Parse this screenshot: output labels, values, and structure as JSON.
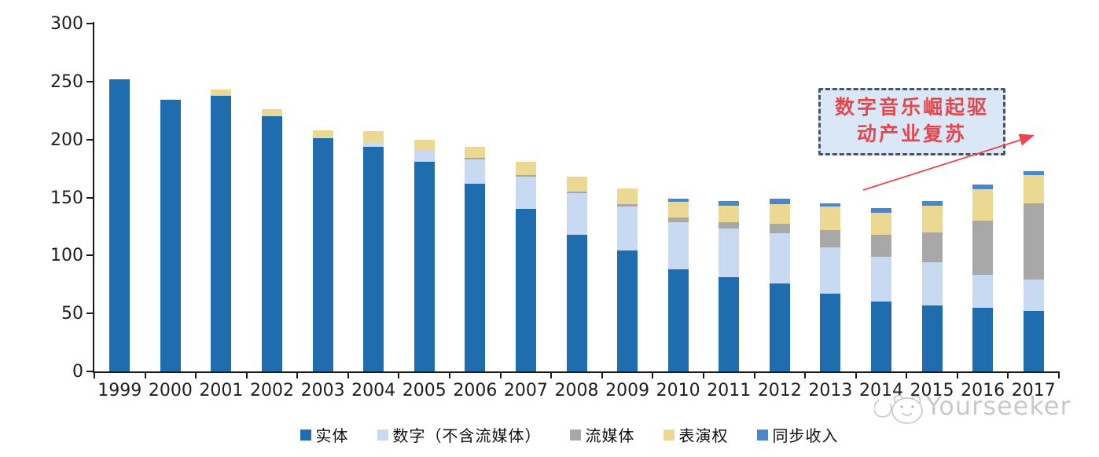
{
  "chart_data": {
    "type": "bar",
    "stacked": true,
    "title": "",
    "categories": [
      "1999",
      "2000",
      "2001",
      "2002",
      "2003",
      "2004",
      "2005",
      "2006",
      "2007",
      "2008",
      "2009",
      "2010",
      "2011",
      "2012",
      "2013",
      "2014",
      "2015",
      "2016",
      "2017"
    ],
    "series": [
      {
        "name": "实体",
        "color": "#1F6CAE",
        "values": [
          252,
          234,
          238,
          220,
          201,
          194,
          181,
          162,
          140,
          118,
          104,
          88,
          81,
          76,
          67,
          60,
          57,
          55,
          52
        ]
      },
      {
        "name": "数字（不含流媒体）",
        "color": "#C7DAF1",
        "values": [
          0,
          0,
          0,
          0,
          0,
          4,
          9,
          21,
          28,
          36,
          38,
          41,
          42,
          43,
          40,
          39,
          37,
          28,
          27
        ]
      },
      {
        "name": "流媒体",
        "color": "#A8A8A8",
        "values": [
          0,
          0,
          0,
          0,
          0,
          0,
          0,
          1,
          1,
          1,
          2,
          4,
          6,
          8,
          15,
          19,
          26,
          47,
          66
        ]
      },
      {
        "name": "表演权",
        "color": "#EBD893",
        "values": [
          0,
          0,
          5,
          6,
          7,
          9,
          10,
          10,
          12,
          13,
          14,
          13,
          14,
          17,
          20,
          19,
          23,
          27,
          24
        ]
      },
      {
        "name": "同步收入",
        "color": "#4C87C9",
        "values": [
          0,
          0,
          0,
          0,
          0,
          0,
          0,
          0,
          0,
          0,
          0,
          3,
          4,
          5,
          3,
          4,
          4,
          4,
          4
        ]
      }
    ],
    "xlabel": "",
    "ylabel": "",
    "ylim": [
      0,
      300
    ],
    "yticks": [
      0,
      50,
      100,
      150,
      200,
      250,
      300
    ],
    "grid": false,
    "legend_position": "bottom"
  },
  "annotation": {
    "line1": "数字音乐崛起驱",
    "line2": "动产业复苏",
    "text_color": "#E2484E",
    "box_fill": "#DAE7F6",
    "border_color": "#44546A",
    "arrow_color": "#EE4450"
  },
  "watermark": {
    "text": "Yourseeker"
  }
}
